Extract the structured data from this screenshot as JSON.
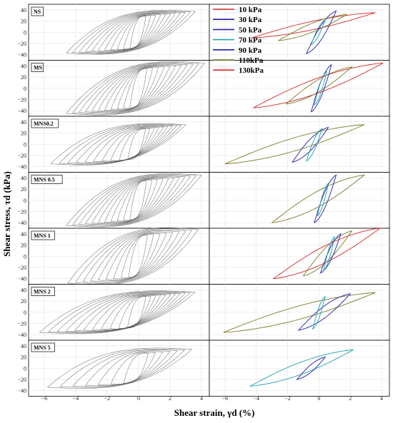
{
  "chart_data": {
    "type": "line",
    "xlabel": "Shear strain, γd (%)",
    "ylabel": "Shear stress, τd (kPa)",
    "xlim": [
      -7,
      4.5
    ],
    "x_ticks": [
      "−6",
      "−4",
      "−2",
      "0",
      "2",
      "4"
    ],
    "x_tick_values": [
      -6,
      -4,
      -2,
      0,
      2,
      4
    ],
    "ylim": [
      -50,
      50
    ],
    "y_ticks": [
      "40",
      "20",
      "0",
      "−20",
      "−40"
    ],
    "y_tick_values": [
      40,
      20,
      0,
      -20,
      -40
    ],
    "grid": true,
    "legend_position": "top, right column",
    "legend": [
      {
        "label": "10 kPa",
        "color": "#d62728"
      },
      {
        "label": "30 kPa",
        "color": "#1f1fa8"
      },
      {
        "label": "50 kPa",
        "color": "#1f1fa8"
      },
      {
        "label": "70 kPa",
        "color": "#20a0b0"
      },
      {
        "label": "90 kPa",
        "color": "#1f1fa8"
      },
      {
        "label": "110kPa",
        "color": "#7d7a2a"
      },
      {
        "label": "130kPa",
        "color": "#d62728"
      }
    ],
    "rows": [
      {
        "tag": "NS",
        "left_loops": {
          "count": 11,
          "max_strain": 3.6,
          "min_strain": -4.6,
          "stress_amp": 37
        },
        "right_loops": [
          {
            "color": "#d62728",
            "strain_range": [
              -4.3,
              3.6
            ],
            "stress_range": [
              -10,
              35
            ]
          },
          {
            "color": "#7d7a2a",
            "strain_range": [
              -2.6,
              1.8
            ],
            "stress_range": [
              -15,
              32
            ]
          },
          {
            "color": "#1f1fa8",
            "strain_range": [
              -0.8,
              1.1
            ],
            "stress_range": [
              -38,
              38
            ]
          },
          {
            "color": "#20a0b0",
            "strain_range": [
              -0.5,
              0.4
            ],
            "stress_range": [
              -22,
              22
            ]
          }
        ]
      },
      {
        "tag": "MS",
        "left_loops": {
          "count": 11,
          "max_strain": 4.2,
          "min_strain": -4.6,
          "stress_amp": 45
        },
        "right_loops": [
          {
            "color": "#d62728",
            "strain_range": [
              -4.2,
              4.1
            ],
            "stress_range": [
              -35,
              45
            ]
          },
          {
            "color": "#7d7a2a",
            "strain_range": [
              -2.1,
              2.1
            ],
            "stress_range": [
              -28,
              38
            ]
          },
          {
            "color": "#1f1fa8",
            "strain_range": [
              -0.5,
              0.8
            ],
            "stress_range": [
              -42,
              42
            ]
          },
          {
            "color": "#20a0b0",
            "strain_range": [
              -0.3,
              0.5
            ],
            "stress_range": [
              -30,
              30
            ]
          }
        ]
      },
      {
        "tag": "MNS0.2",
        "left_loops": {
          "count": 10,
          "max_strain": 3.0,
          "min_strain": -5.6,
          "stress_amp": 35
        },
        "right_loops": [
          {
            "color": "#7d7a2a",
            "strain_range": [
              -6.0,
              2.9
            ],
            "stress_range": [
              -35,
              35
            ]
          },
          {
            "color": "#1f1fa8",
            "strain_range": [
              -1.7,
              0.6
            ],
            "stress_range": [
              -32,
              30
            ]
          },
          {
            "color": "#20a0b0",
            "strain_range": [
              -0.8,
              0.2
            ],
            "stress_range": [
              -30,
              28
            ]
          }
        ]
      },
      {
        "tag": "MNS 0.5",
        "left_loops": {
          "count": 11,
          "max_strain": 4.0,
          "min_strain": -4.6,
          "stress_amp": 45
        },
        "right_loops": [
          {
            "color": "#7d7a2a",
            "strain_range": [
              -3.0,
              2.9
            ],
            "stress_range": [
              -40,
              45
            ]
          },
          {
            "color": "#1f1fa8",
            "strain_range": [
              -0.3,
              1.1
            ],
            "stress_range": [
              -40,
              45
            ]
          },
          {
            "color": "#20a0b0",
            "strain_range": [
              -0.1,
              0.6
            ],
            "stress_range": [
              -28,
              30
            ]
          }
        ]
      },
      {
        "tag": "MNS 1",
        "left_loops": {
          "count": 9,
          "max_strain": 3.8,
          "min_strain": -4.5,
          "stress_amp": 48
        },
        "right_loops": [
          {
            "color": "#d62728",
            "strain_range": [
              -2.9,
              3.9
            ],
            "stress_range": [
              -40,
              50
            ]
          },
          {
            "color": "#7d7a2a",
            "strain_range": [
              -1.0,
              2.1
            ],
            "stress_range": [
              -35,
              45
            ]
          },
          {
            "color": "#1f1fa8",
            "strain_range": [
              0.1,
              1.4
            ],
            "stress_range": [
              -30,
              40
            ]
          },
          {
            "color": "#20a0b0",
            "strain_range": [
              0.3,
              1.0
            ],
            "stress_range": [
              -25,
              35
            ]
          }
        ]
      },
      {
        "tag": "MNS 2",
        "left_loops": {
          "count": 11,
          "max_strain": 3.6,
          "min_strain": -6.3,
          "stress_amp": 36
        },
        "right_loops": [
          {
            "color": "#7d7a2a",
            "strain_range": [
              -6.1,
              3.6
            ],
            "stress_range": [
              -36,
              35
            ]
          },
          {
            "color": "#1f1fa8",
            "strain_range": [
              -1.3,
              2.0
            ],
            "stress_range": [
              -32,
              33
            ]
          },
          {
            "color": "#20a0b0",
            "strain_range": [
              -0.4,
              0.4
            ],
            "stress_range": [
              -30,
              28
            ]
          }
        ]
      },
      {
        "tag": "MNS 5",
        "left_loops": {
          "count": 7,
          "max_strain": 3.4,
          "min_strain": -5.8,
          "stress_amp": 34
        },
        "right_loops": [
          {
            "color": "#20a0b0",
            "strain_range": [
              -4.4,
              2.2
            ],
            "stress_range": [
              -32,
              33
            ]
          },
          {
            "color": "#1f1fa8",
            "strain_range": [
              -1.4,
              0.4
            ],
            "stress_range": [
              -20,
              20
            ]
          }
        ]
      }
    ]
  }
}
